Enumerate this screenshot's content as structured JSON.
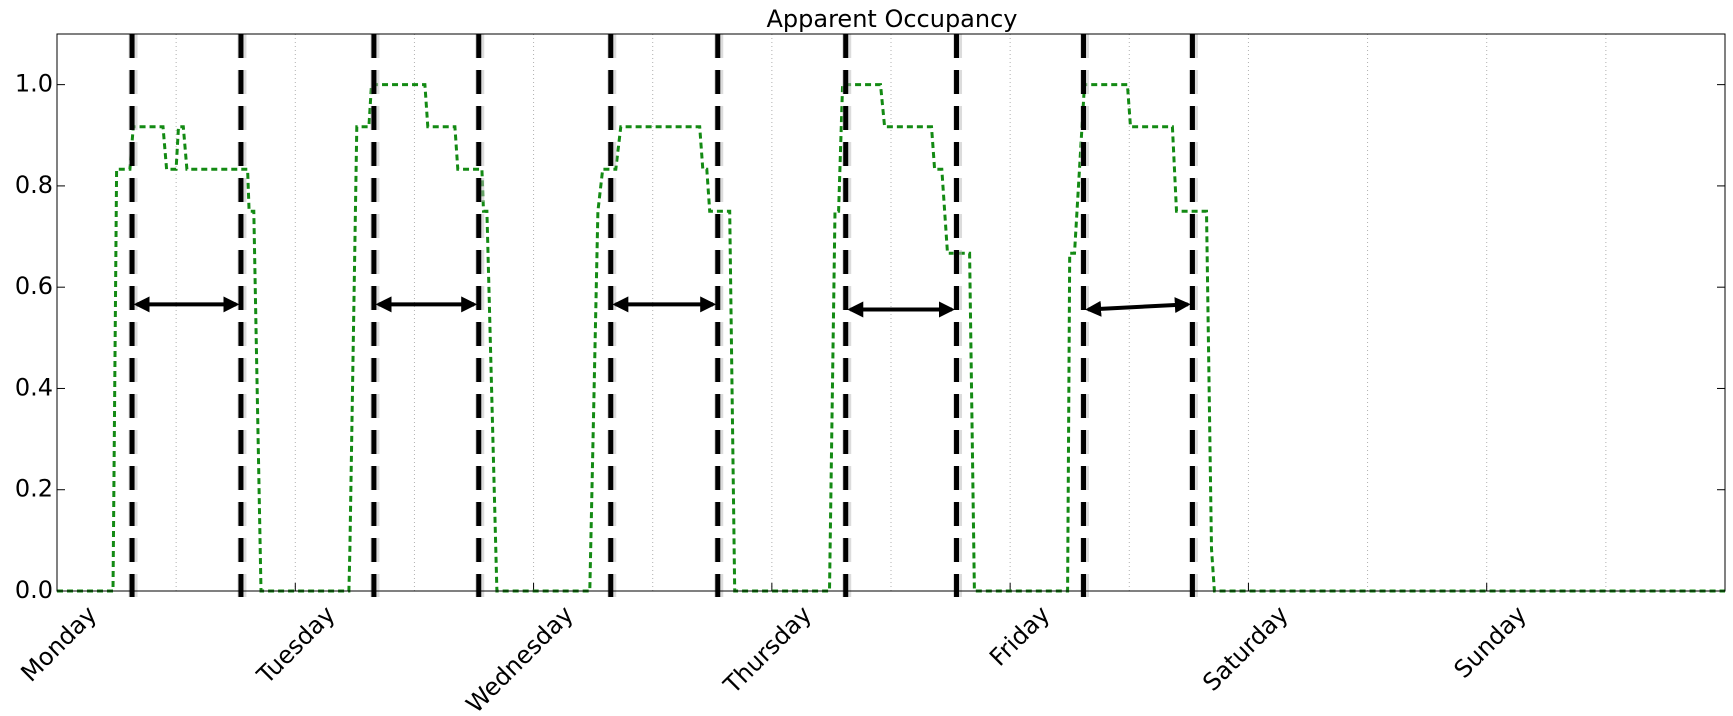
{
  "chart_data": {
    "type": "line",
    "title": "Apparent Occupancy",
    "xlim": [
      0,
      7
    ],
    "ylim": [
      0,
      1.1
    ],
    "xticks": [
      {
        "value": 0,
        "label": "Monday"
      },
      {
        "value": 1,
        "label": "Tuesday"
      },
      {
        "value": 2,
        "label": "Wednesday"
      },
      {
        "value": 3,
        "label": "Thursday"
      },
      {
        "value": 4,
        "label": "Friday"
      },
      {
        "value": 5,
        "label": "Saturday"
      },
      {
        "value": 6,
        "label": "Sunday"
      }
    ],
    "xminorticks": [
      0.5,
      1.5,
      2.5,
      3.5,
      4.5,
      5.5,
      6.5
    ],
    "yticks": [
      {
        "value": 0,
        "label": "0.0"
      },
      {
        "value": 0.2,
        "label": "0.2"
      },
      {
        "value": 0.4,
        "label": "0.4"
      },
      {
        "value": 0.6,
        "label": "0.6"
      },
      {
        "value": 0.8,
        "label": "0.8"
      },
      {
        "value": 1.0,
        "label": "1.0"
      }
    ],
    "grid": true,
    "color": "#138a13",
    "line_style": "dashed",
    "x": [
      0,
      0.235,
      0.25,
      0.264,
      0.306,
      0.32,
      0.336,
      0.445,
      0.46,
      0.5,
      0.51,
      0.53,
      0.545,
      0.8,
      0.806,
      0.826,
      0.856,
      1.225,
      1.229,
      1.258,
      1.267,
      1.309,
      1.32,
      1.346,
      1.544,
      1.556,
      1.67,
      1.682,
      1.783,
      1.79,
      1.804,
      1.846,
      2.236,
      2.27,
      2.29,
      2.345,
      2.366,
      2.697,
      2.71,
      2.727,
      2.739,
      2.823,
      2.844,
      3.242,
      3.265,
      3.28,
      3.297,
      3.456,
      3.473,
      3.67,
      3.683,
      3.713,
      3.737,
      3.83,
      3.85,
      4.241,
      4.25,
      4.27,
      4.312,
      4.492,
      4.505,
      4.681,
      4.698,
      4.824,
      4.845,
      4.857,
      7
    ],
    "values": [
      0,
      0,
      0.833,
      0.833,
      0.833,
      0.917,
      0.917,
      0.917,
      0.833,
      0.833,
      0.917,
      0.917,
      0.833,
      0.833,
      0.75,
      0.75,
      0,
      0,
      0.083,
      0.917,
      0.917,
      0.917,
      1.0,
      1.0,
      1.0,
      0.917,
      0.917,
      0.833,
      0.833,
      0.75,
      0.75,
      0,
      0,
      0.75,
      0.833,
      0.833,
      0.917,
      0.917,
      0.833,
      0.833,
      0.75,
      0.75,
      0,
      0,
      0.75,
      0.75,
      1.0,
      1.0,
      0.917,
      0.917,
      0.833,
      0.833,
      0.667,
      0.667,
      0,
      0,
      0.667,
      0.667,
      1.0,
      1.0,
      0.917,
      0.917,
      0.75,
      0.75,
      0.083,
      0,
      0
    ],
    "vline_color": "#000000",
    "vlines": [
      0.315,
      0.772,
      1.33,
      1.77,
      2.324,
      2.773,
      3.31,
      3.775,
      4.308,
      4.765
    ],
    "arrows": [
      {
        "x": [
          0.335,
          0.752
        ],
        "y": [
          0.566,
          0.566
        ]
      },
      {
        "x": [
          1.35,
          1.75
        ],
        "y": [
          0.566,
          0.566
        ]
      },
      {
        "x": [
          2.344,
          2.753
        ],
        "y": [
          0.566,
          0.566
        ]
      },
      {
        "x": [
          3.33,
          3.755
        ],
        "y": [
          0.556,
          0.556
        ]
      },
      {
        "x": [
          4.328,
          4.745
        ],
        "y": [
          0.556,
          0.566
        ]
      }
    ]
  }
}
